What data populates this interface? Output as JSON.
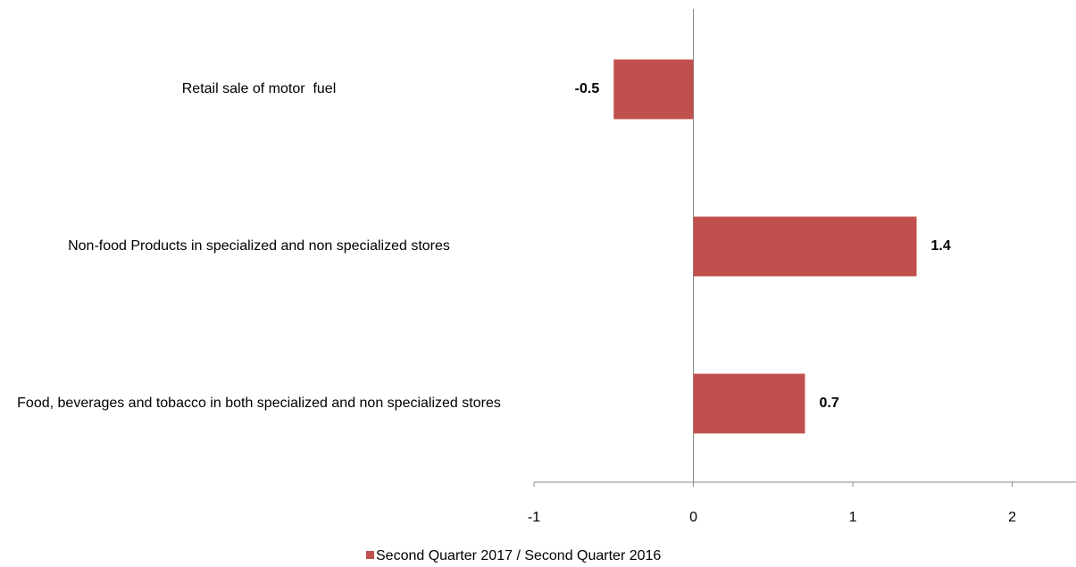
{
  "chart_data": {
    "type": "hbar",
    "categories": [
      "Retail sale of motor  fuel",
      "Non-food Products in specialized and non specialized stores",
      "Food, beverages and tobacco in both specialized and non specialized stores"
    ],
    "series": [
      {
        "name": "Second Quarter 2017 / Second Quarter 2016",
        "color": "#c0504d",
        "values": [
          -0.5,
          1.4,
          0.7
        ]
      }
    ],
    "xlim": [
      -1,
      2.4
    ],
    "xticks": [
      -1,
      0,
      1,
      2
    ],
    "legend": "bottom"
  }
}
